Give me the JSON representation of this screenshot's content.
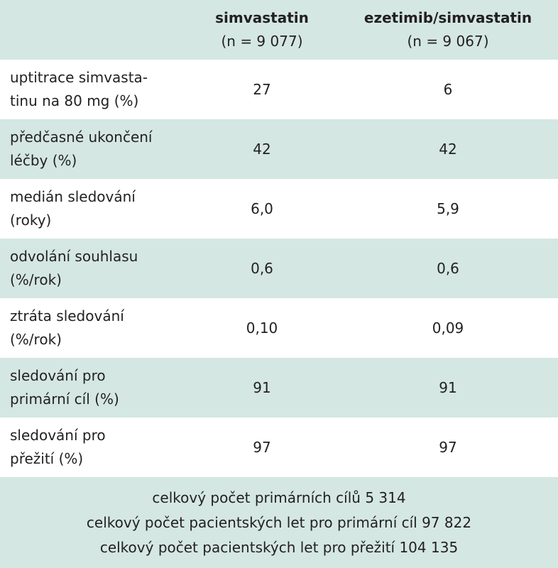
{
  "table": {
    "header": [
      {
        "name": "simvastatin",
        "n": "(n = 9 077)"
      },
      {
        "name": "ezetimib/simvastatin",
        "n": "(n = 9 067)"
      }
    ],
    "rows": [
      {
        "label": [
          "uptitrace simvasta-",
          "tinu na 80 mg (%)"
        ],
        "values": [
          "27",
          "6"
        ]
      },
      {
        "label": [
          "předčasné ukončení",
          "léčby (%)"
        ],
        "values": [
          "42",
          "42"
        ]
      },
      {
        "label": [
          "medián sledování",
          "(roky)"
        ],
        "values": [
          "6,0",
          "5,9"
        ]
      },
      {
        "label": [
          "odvolání souhlasu",
          "(%/rok)"
        ],
        "values": [
          "0,6",
          "0,6"
        ]
      },
      {
        "label": [
          "ztráta sledování",
          "(%/rok)"
        ],
        "values": [
          "0,10",
          "0,09"
        ]
      },
      {
        "label": [
          "sledování pro",
          "primární cíl (%)"
        ],
        "values": [
          "91",
          "91"
        ]
      },
      {
        "label": [
          "sledování pro",
          "přežití (%)"
        ],
        "values": [
          "97",
          "97"
        ]
      }
    ],
    "footer": [
      "celkový počet primárních cílů 5 314",
      "celkový počet pacientských let pro primární cíl 97 822",
      "celkový počet pacientských let pro přežití 104 135"
    ]
  }
}
